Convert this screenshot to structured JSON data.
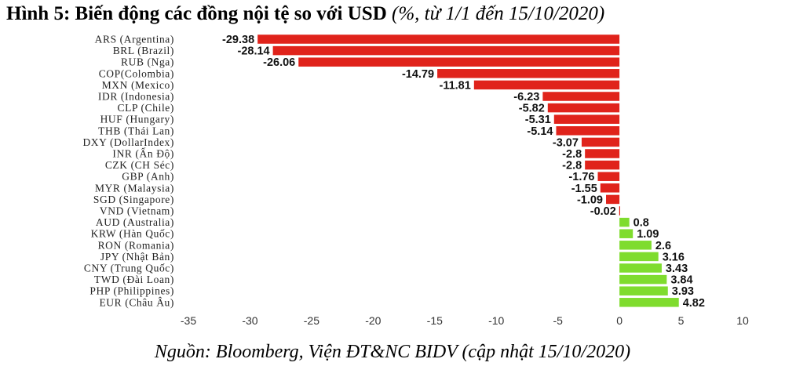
{
  "chart_data": {
    "type": "bar",
    "orientation": "horizontal",
    "title": "Hình 5: Biến động các đồng nội tệ so với USD",
    "subtitle": "(%, từ 1/1 đến 15/10/2020)",
    "categories": [
      "ARS (Argentina)",
      "BRL (Brazil)",
      "RUB (Nga)",
      "COP(Colombia)",
      "MXN (Mexico)",
      "IDR (Indonesia)",
      "CLP (Chile)",
      "HUF (Hungary)",
      "THB (Thái Lan)",
      "DXY (DollarIndex)",
      "INR (Ấn Độ)",
      "CZK (CH Séc)",
      "GBP (Anh)",
      "MYR (Malaysia)",
      "SGD (Singapore)",
      "VND (Vietnam)",
      "AUD (Australia)",
      "KRW (Hàn Quốc)",
      "RON (Romania)",
      "JPY (Nhật Bản)",
      "CNY (Trung Quốc)",
      "TWD (Đài Loan)",
      "PHP (Philippines)",
      "EUR (Châu Âu)"
    ],
    "values": [
      -29.38,
      -28.14,
      -26.06,
      -14.79,
      -11.81,
      -6.23,
      -5.82,
      -5.31,
      -5.14,
      -3.07,
      -2.8,
      -2.8,
      -1.76,
      -1.55,
      -1.09,
      -0.02,
      0.8,
      1.09,
      2.6,
      3.16,
      3.43,
      3.84,
      3.93,
      4.82
    ],
    "xlim": [
      -35,
      10
    ],
    "xticks": [
      -35,
      -30,
      -25,
      -20,
      -15,
      -10,
      -5,
      0,
      5,
      10
    ],
    "xlabel": "",
    "ylabel": "",
    "grid": false,
    "colors": {
      "negative": "#e0231b",
      "positive": "#7fdc2e"
    }
  },
  "source": "Nguồn: Bloomberg, Viện ĐT&NC BIDV (cập nhật 15/10/2020)"
}
